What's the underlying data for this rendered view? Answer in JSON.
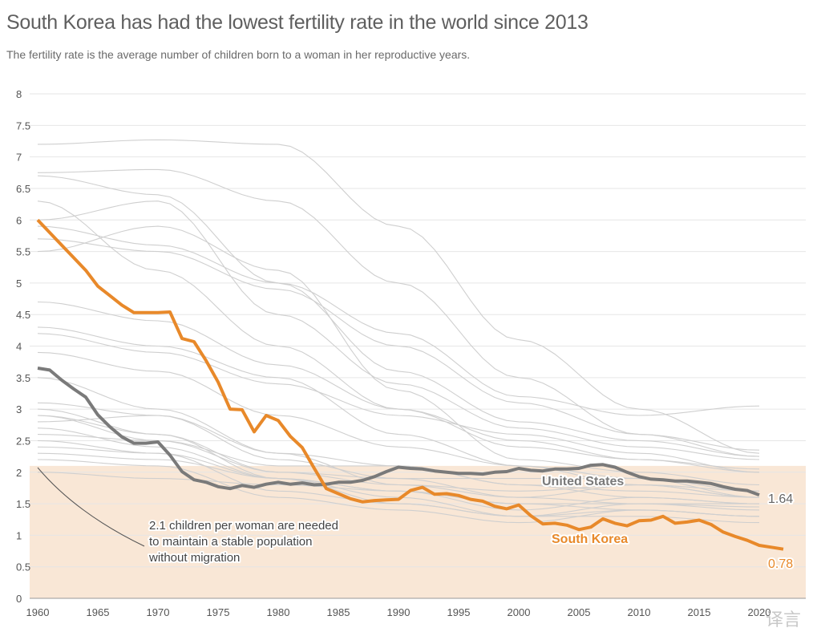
{
  "chart_data": {
    "type": "line",
    "title": "South Korea has had the lowest fertility rate in the world since 2013",
    "subtitle": "The fertility rate is the average number of children born to a woman in her reproductive years.",
    "xlabel": "",
    "ylabel": "",
    "xlim": [
      1959.3,
      2024
    ],
    "ylim": [
      0,
      8
    ],
    "x_ticks": [
      "1960",
      "1965",
      "1970",
      "1975",
      "1980",
      "1985",
      "1990",
      "1995",
      "2000",
      "2005",
      "2010",
      "2015",
      "2020"
    ],
    "y_ticks": [
      "0",
      "0.5",
      "1",
      "1.5",
      "2",
      "2.5",
      "3",
      "3.5",
      "4",
      "4.5",
      "5",
      "5.5",
      "6",
      "6.5",
      "7",
      "7.5",
      "8"
    ],
    "grid": true,
    "replacement_band": {
      "from": 0,
      "to": 2.1
    },
    "annotation": "2.1 children per woman are needed to maintain a stable population without migration",
    "annotation_lines": [
      "2.1 children per woman are needed",
      "to maintain a stable population",
      "without migration"
    ],
    "colors": {
      "south_korea": "#e8892a",
      "united_states": "#7a7a7a",
      "others": "#cfcfcf",
      "band": "#f9e7d6"
    },
    "series": [
      {
        "name": "South Korea",
        "start_year": 1960,
        "end_label": "0.78",
        "values": [
          6.0,
          5.8,
          5.6,
          5.4,
          5.2,
          4.95,
          4.8,
          4.65,
          4.53,
          4.53,
          4.53,
          4.54,
          4.12,
          4.07,
          3.77,
          3.43,
          3.0,
          2.99,
          2.64,
          2.9,
          2.82,
          2.57,
          2.39,
          2.06,
          1.74,
          1.66,
          1.58,
          1.53,
          1.55,
          1.56,
          1.57,
          1.71,
          1.76,
          1.65,
          1.66,
          1.63,
          1.57,
          1.54,
          1.46,
          1.42,
          1.48,
          1.31,
          1.18,
          1.19,
          1.16,
          1.09,
          1.13,
          1.26,
          1.19,
          1.15,
          1.23,
          1.24,
          1.3,
          1.19,
          1.21,
          1.24,
          1.17,
          1.05,
          0.98,
          0.92,
          0.84,
          0.81,
          0.78
        ]
      },
      {
        "name": "United States",
        "start_year": 1960,
        "end_label": "1.64",
        "values": [
          3.65,
          3.62,
          3.46,
          3.32,
          3.19,
          2.91,
          2.72,
          2.56,
          2.46,
          2.46,
          2.48,
          2.27,
          2.01,
          1.88,
          1.84,
          1.77,
          1.74,
          1.79,
          1.76,
          1.81,
          1.84,
          1.81,
          1.83,
          1.8,
          1.81,
          1.84,
          1.84,
          1.87,
          1.93,
          2.01,
          2.08,
          2.06,
          2.05,
          2.02,
          2.0,
          1.98,
          1.98,
          1.97,
          2.0,
          2.01,
          2.06,
          2.03,
          2.02,
          2.05,
          2.05,
          2.06,
          2.11,
          2.12,
          2.08,
          2.0,
          1.93,
          1.89,
          1.88,
          1.86,
          1.86,
          1.84,
          1.82,
          1.77,
          1.73,
          1.71,
          1.64
        ]
      }
    ],
    "other_countries": {
      "years": [
        1960,
        1970,
        1980,
        1990,
        2000,
        2010,
        2020
      ],
      "values": [
        [
          7.2,
          7.27,
          7.2,
          5.9,
          4.1,
          3.0,
          2.3
        ],
        [
          6.75,
          6.8,
          6.3,
          5.0,
          3.5,
          2.6,
          2.25
        ],
        [
          6.7,
          6.4,
          5.0,
          3.6,
          2.8,
          2.5,
          2.25
        ],
        [
          6.0,
          6.3,
          4.5,
          3.4,
          2.7,
          2.4,
          2.2
        ],
        [
          6.3,
          5.2,
          4.0,
          3.0,
          2.4,
          2.2,
          2.0
        ],
        [
          5.7,
          5.5,
          4.9,
          4.0,
          3.1,
          2.6,
          2.35
        ],
        [
          5.9,
          5.6,
          5.0,
          4.2,
          3.2,
          2.9,
          3.05
        ],
        [
          4.7,
          4.4,
          3.7,
          3.0,
          2.5,
          2.2,
          2.05
        ],
        [
          4.2,
          3.9,
          3.4,
          2.9,
          2.6,
          2.3,
          2.0
        ],
        [
          3.9,
          3.6,
          2.9,
          2.4,
          2.1,
          1.9,
          1.7
        ],
        [
          3.5,
          3.0,
          2.3,
          2.1,
          1.8,
          1.6,
          1.5
        ],
        [
          3.1,
          2.9,
          2.2,
          1.9,
          1.6,
          1.5,
          1.4
        ],
        [
          2.9,
          2.6,
          2.0,
          1.8,
          1.7,
          1.8,
          1.6
        ],
        [
          2.7,
          2.4,
          1.9,
          1.6,
          1.3,
          1.4,
          1.3
        ],
        [
          2.5,
          2.3,
          1.9,
          1.7,
          1.5,
          1.5,
          1.45
        ],
        [
          2.4,
          2.3,
          1.7,
          1.5,
          1.3,
          1.5,
          1.5
        ],
        [
          2.2,
          2.1,
          1.6,
          1.4,
          1.2,
          1.4,
          1.3
        ],
        [
          2.8,
          2.9,
          2.3,
          1.8,
          1.6,
          1.8,
          1.7
        ],
        [
          3.0,
          2.6,
          1.9,
          1.5,
          1.3,
          1.3,
          1.2
        ],
        [
          2.6,
          2.5,
          2.0,
          1.9,
          1.9,
          1.9,
          1.6
        ],
        [
          2.0,
          1.9,
          1.8,
          1.7,
          1.4,
          1.6,
          1.5
        ],
        [
          2.3,
          2.2,
          1.9,
          1.7,
          1.5,
          1.4,
          1.3
        ],
        [
          4.3,
          4.0,
          3.5,
          2.6,
          2.1,
          1.8,
          1.6
        ],
        [
          5.5,
          5.9,
          5.2,
          3.3,
          2.2,
          2.0,
          1.8
        ],
        [
          2.9,
          2.5,
          2.1,
          2.1,
          1.8,
          1.7,
          1.6
        ]
      ]
    },
    "legend": "none"
  },
  "watermark": "译言"
}
